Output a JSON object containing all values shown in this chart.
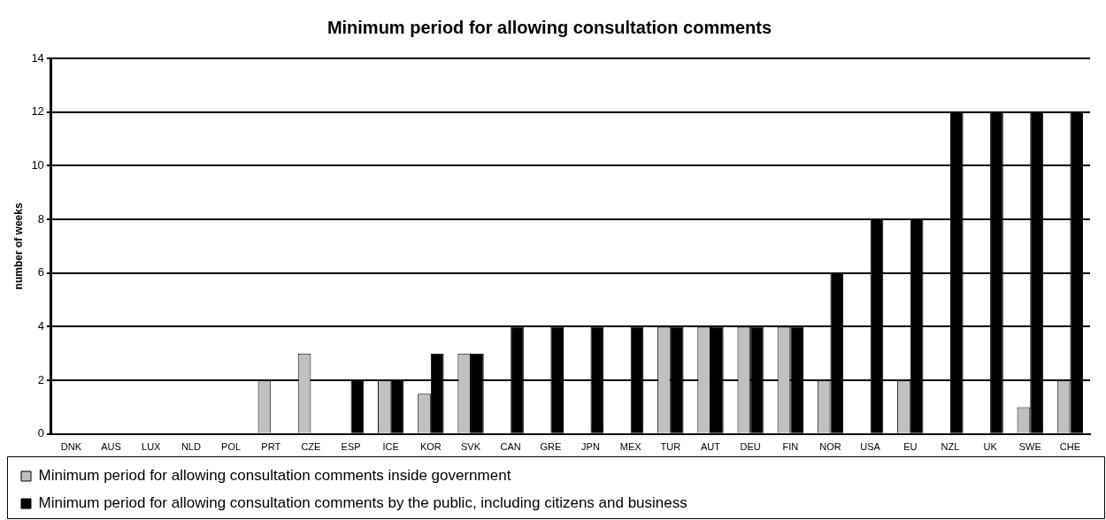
{
  "chart_data": {
    "type": "bar",
    "title": "Minimum period for allowing consultation comments",
    "ylabel": "number of weeks",
    "categories": [
      "DNK",
      "AUS",
      "LUX",
      "NLD",
      "POL",
      "PRT",
      "CZE",
      "ESP",
      "ICE",
      "KOR",
      "SVK",
      "CAN",
      "GRE",
      "JPN",
      "MEX",
      "TUR",
      "AUT",
      "DEU",
      "FIN",
      "NOR",
      "USA",
      "EU",
      "NZL",
      "UK",
      "SWE",
      "CHE"
    ],
    "series": [
      {
        "name": "Minimum period for allowing consultation comments inside government",
        "color": "#c0c0c0",
        "values": [
          null,
          null,
          null,
          null,
          null,
          2,
          3,
          null,
          2,
          1.5,
          3,
          null,
          null,
          null,
          null,
          4,
          4,
          4,
          4,
          2,
          null,
          2,
          null,
          null,
          1,
          2
        ]
      },
      {
        "name": "Minimum period for allowing consultation comments by the public, including citizens and business",
        "color": "#000000",
        "values": [
          null,
          null,
          null,
          null,
          null,
          null,
          null,
          2,
          2,
          3,
          3,
          4,
          4,
          4,
          4,
          4,
          4,
          4,
          4,
          6,
          8,
          8,
          12,
          12,
          12,
          12
        ]
      }
    ],
    "ylim": [
      0,
      14
    ],
    "yticks": [
      0,
      2,
      4,
      6,
      8,
      10,
      12,
      14
    ],
    "grid": "y",
    "legend": "bottom"
  }
}
